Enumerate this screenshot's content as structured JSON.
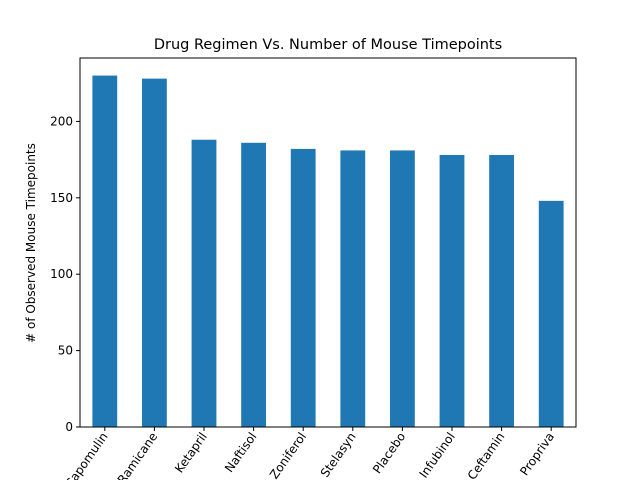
{
  "chart_data": {
    "type": "bar",
    "title": "Drug Regimen Vs. Number of Mouse Timepoints",
    "xlabel": "",
    "ylabel": "# of Observed Mouse Timepoints",
    "categories": [
      "Capomulin",
      "Ramicane",
      "Ketapril",
      "Naftisol",
      "Zoniferol",
      "Stelasyn",
      "Placebo",
      "Infubinol",
      "Ceftamin",
      "Propriva"
    ],
    "values": [
      230,
      228,
      188,
      186,
      182,
      181,
      181,
      178,
      178,
      148
    ],
    "ylim": [
      0,
      241.5
    ],
    "yticks": [
      0,
      50,
      100,
      150,
      200
    ],
    "bar_color": "#1f77b4",
    "grid": false,
    "legend": "none"
  }
}
